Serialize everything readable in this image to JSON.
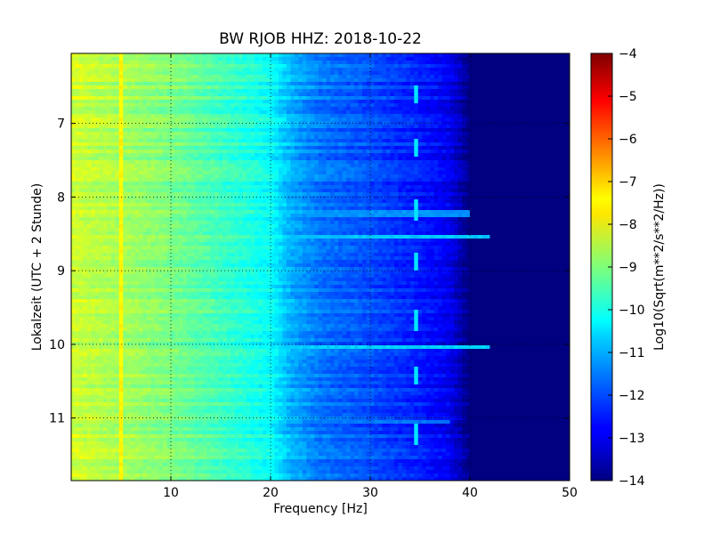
{
  "chart_data": {
    "type": "heatmap",
    "title": "BW RJOB HHZ: 2018-10-22",
    "xlabel": "Frequency [Hz]",
    "ylabel": "Lokalzeit (UTC + 2 Stunde)",
    "xlim": [
      0,
      50
    ],
    "ylim": [
      11.85,
      6.05
    ],
    "y_inverted": true,
    "grid": true,
    "grid_style": "dotted",
    "x_ticks": [
      10,
      20,
      30,
      40,
      50
    ],
    "y_ticks": [
      7,
      8,
      9,
      10,
      11
    ],
    "colormap": "jet",
    "colorbar": {
      "label": "Log10(Sqrt(m**2/s**2/Hz))",
      "range": [
        -14,
        -4
      ],
      "ticks": [
        -4,
        -5,
        -6,
        -7,
        -8,
        -9,
        -10,
        -11,
        -12,
        -13,
        -14
      ]
    },
    "value_profile_by_frequency": {
      "frequency_hz": [
        0,
        5,
        10,
        15,
        20,
        22,
        25,
        30,
        35,
        38,
        40,
        50
      ],
      "log_psd": [
        -8.2,
        -8.6,
        -9.0,
        -9.6,
        -10.2,
        -11.0,
        -11.6,
        -12.0,
        -12.5,
        -12.9,
        -14.0,
        -14.0
      ]
    },
    "features": [
      {
        "kind": "vertical_line",
        "frequency_hz": 5.0,
        "log_psd": -7.7
      },
      {
        "kind": "horizontal_band",
        "time": 8.53,
        "log_psd": -10.8,
        "extends_to_hz": 42
      },
      {
        "kind": "horizontal_band",
        "time": 10.04,
        "log_psd": -10.7,
        "extends_to_hz": 42
      },
      {
        "kind": "horizontal_band",
        "time": 8.23,
        "log_psd": -11.3,
        "extends_to_hz": 40
      },
      {
        "kind": "horizontal_band",
        "time": 11.05,
        "log_psd": -11.6,
        "extends_to_hz": 38
      },
      {
        "kind": "chirp_near_hz",
        "frequency_hz": 34.5,
        "times": [
          6.7,
          7.4,
          8.25,
          8.95,
          9.75,
          10.5,
          11.3
        ],
        "log_psd": -10.5
      }
    ]
  }
}
